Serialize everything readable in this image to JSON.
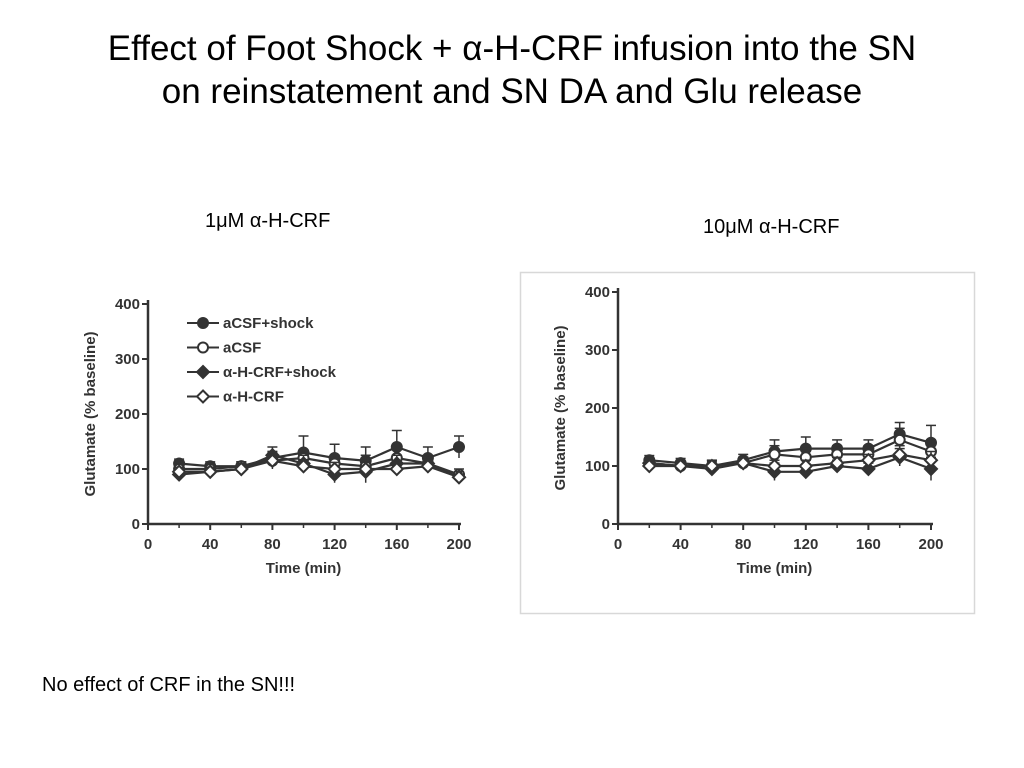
{
  "slide": {
    "title_line1": "Effect of Foot Shock + α-H-CRF infusion into the SN",
    "title_line2": "on reinstatement and SN DA and Glu release",
    "label_left": "1μM α-H-CRF",
    "label_right": "10μM α-H-CRF",
    "footnote": "No effect of CRF in the SN!!!"
  },
  "chart_data": [
    {
      "type": "line",
      "xlabel": "Time (min)",
      "ylabel": "Glutamate (% baseline)",
      "xlim": [
        0,
        200
      ],
      "ylim": [
        0,
        400
      ],
      "xticks": [
        0,
        40,
        80,
        120,
        160,
        200
      ],
      "yticks": [
        0,
        100,
        200,
        300,
        400
      ],
      "legend": "top-left",
      "x": [
        20,
        40,
        60,
        80,
        100,
        120,
        140,
        160,
        180,
        200
      ],
      "series": [
        {
          "name": "aCSF+shock",
          "marker": "filled-circle",
          "values": [
            110,
            105,
            105,
            120,
            130,
            120,
            115,
            140,
            120,
            140
          ],
          "errors": [
            8,
            8,
            8,
            12,
            30,
            25,
            25,
            30,
            20,
            20
          ]
        },
        {
          "name": "aCSF",
          "marker": "open-circle",
          "values": [
            100,
            100,
            105,
            115,
            120,
            110,
            105,
            120,
            110,
            90
          ],
          "errors": [
            8,
            8,
            8,
            15,
            15,
            15,
            20,
            15,
            15,
            10
          ]
        },
        {
          "name": "α-H-CRF+shock",
          "marker": "filled-diamond",
          "values": [
            90,
            95,
            100,
            125,
            110,
            90,
            95,
            110,
            110,
            85
          ],
          "errors": [
            8,
            8,
            10,
            15,
            15,
            15,
            20,
            15,
            15,
            10
          ]
        },
        {
          "name": "α-H-CRF",
          "marker": "open-diamond",
          "values": [
            95,
            95,
            100,
            115,
            105,
            100,
            100,
            100,
            105,
            85
          ],
          "errors": [
            8,
            8,
            8,
            12,
            12,
            12,
            12,
            12,
            12,
            10
          ]
        }
      ]
    },
    {
      "type": "line",
      "xlabel": "Time (min)",
      "ylabel": "Glutamate (% baseline)",
      "xlim": [
        0,
        200
      ],
      "ylim": [
        0,
        400
      ],
      "xticks": [
        0,
        40,
        80,
        120,
        160,
        200
      ],
      "yticks": [
        0,
        100,
        200,
        300,
        400
      ],
      "x": [
        20,
        40,
        60,
        80,
        100,
        120,
        140,
        160,
        180,
        200
      ],
      "series": [
        {
          "name": "aCSF+shock",
          "marker": "filled-circle",
          "values": [
            110,
            105,
            100,
            110,
            125,
            130,
            130,
            130,
            155,
            140
          ],
          "errors": [
            8,
            8,
            10,
            10,
            20,
            20,
            15,
            15,
            20,
            30
          ]
        },
        {
          "name": "aCSF",
          "marker": "open-circle",
          "values": [
            105,
            100,
            100,
            105,
            120,
            115,
            120,
            120,
            145,
            125
          ],
          "errors": [
            8,
            8,
            10,
            10,
            15,
            15,
            15,
            15,
            20,
            20
          ]
        },
        {
          "name": "α-H-CRF+shock",
          "marker": "filled-diamond",
          "values": [
            105,
            100,
            95,
            105,
            90,
            90,
            100,
            95,
            115,
            95
          ],
          "errors": [
            8,
            8,
            8,
            10,
            15,
            10,
            10,
            10,
            15,
            20
          ]
        },
        {
          "name": "α-H-CRF",
          "marker": "open-diamond",
          "values": [
            100,
            100,
            100,
            105,
            100,
            100,
            105,
            110,
            120,
            110
          ],
          "errors": [
            8,
            8,
            8,
            10,
            10,
            10,
            10,
            10,
            15,
            15
          ]
        }
      ]
    }
  ]
}
